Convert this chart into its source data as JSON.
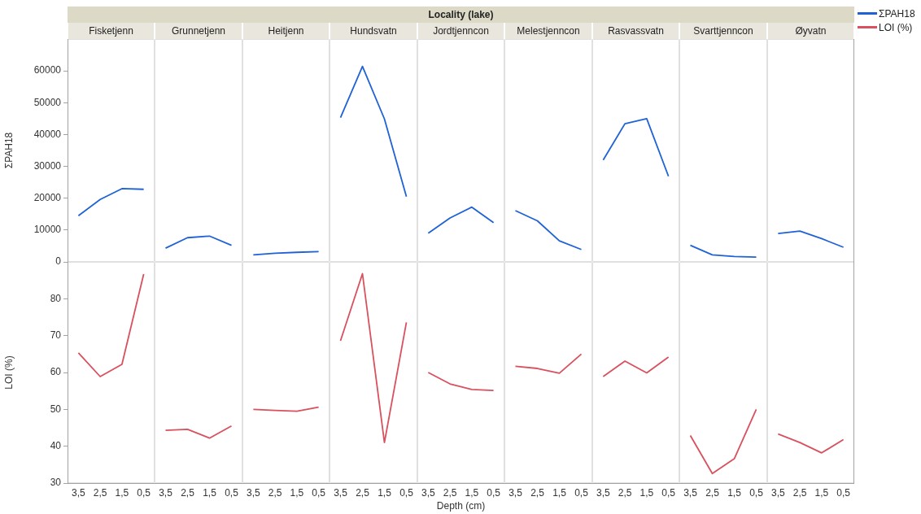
{
  "chart_data": [
    {
      "type": "line",
      "title": "Fisketjenn",
      "ylabel": "ΣPAH18",
      "categories": [
        "3,5",
        "2,5",
        "1,5",
        "0,5"
      ],
      "series": [
        {
          "color": "#1f62d6",
          "values": [
            14500,
            19600,
            23000,
            22800
          ]
        }
      ],
      "ylim": [
        0,
        70000
      ],
      "yticks": [
        0,
        10000,
        20000,
        30000,
        40000,
        50000,
        60000
      ],
      "tick_labels": "y"
    },
    {
      "type": "line",
      "title": "Grunnetjenn",
      "categories": [
        "3,5",
        "2,5",
        "1,5",
        "0,5"
      ],
      "series": [
        {
          "color": "#1f62d6",
          "values": [
            4300,
            7600,
            8100,
            5200
          ]
        }
      ],
      "ylim": [
        0,
        70000
      ],
      "tick_labels": false
    },
    {
      "type": "line",
      "title": "Heitjenn",
      "categories": [
        "3,5",
        "2,5",
        "1,5",
        "0,5"
      ],
      "series": [
        {
          "color": "#1f62d6",
          "values": [
            2200,
            2700,
            3000,
            3200
          ]
        }
      ],
      "ylim": [
        0,
        70000
      ],
      "tick_labels": false
    },
    {
      "type": "line",
      "title": "Hundsvatn",
      "categories": [
        "3,5",
        "2,5",
        "1,5",
        "0,5"
      ],
      "series": [
        {
          "color": "#1f62d6",
          "values": [
            45300,
            61400,
            44900,
            20500
          ]
        }
      ],
      "ylim": [
        0,
        70000
      ],
      "tick_labels": false
    },
    {
      "type": "line",
      "title": "Jordtjenncon",
      "annotations": [
        "Locality (lake)"
      ],
      "categories": [
        "3,5",
        "2,5",
        "1,5",
        "0,5"
      ],
      "series": [
        {
          "color": "#1f62d6",
          "values": [
            9000,
            13800,
            17200,
            12300
          ]
        }
      ],
      "ylim": [
        0,
        70000
      ],
      "tick_labels": false
    },
    {
      "type": "line",
      "title": "Melestjenncon",
      "categories": [
        "3,5",
        "2,5",
        "1,5",
        "0,5"
      ],
      "series": [
        {
          "color": "#1f62d6",
          "values": [
            16100,
            12900,
            6600,
            3900
          ]
        }
      ],
      "ylim": [
        0,
        70000
      ],
      "tick_labels": false
    },
    {
      "type": "line",
      "title": "Rasvassvatn",
      "categories": [
        "3,5",
        "2,5",
        "1,5",
        "0,5"
      ],
      "series": [
        {
          "color": "#1f62d6",
          "values": [
            32000,
            43400,
            45000,
            26900
          ]
        }
      ],
      "ylim": [
        0,
        70000
      ],
      "tick_labels": false
    },
    {
      "type": "line",
      "title": "Svarttjenncon",
      "categories": [
        "3,5",
        "2,5",
        "1,5",
        "0,5"
      ],
      "series": [
        {
          "color": "#1f62d6",
          "values": [
            5200,
            2200,
            1700,
            1500
          ]
        }
      ],
      "ylim": [
        0,
        70000
      ],
      "tick_labels": false
    },
    {
      "type": "line",
      "title": "Øyvatn",
      "categories": [
        "3,5",
        "2,5",
        "1,5",
        "0,5"
      ],
      "series": [
        {
          "name": "ΣPAH18",
          "color": "#1f62d6",
          "values": [
            8900,
            9700,
            7300,
            4600
          ]
        }
      ],
      "ylim": [
        0,
        70000
      ],
      "tick_labels": false,
      "legend": "top right"
    },
    {
      "type": "line",
      "ylabel": "LOI (%)",
      "categories": [
        "3,5",
        "2,5",
        "1,5",
        "0,5"
      ],
      "series": [
        {
          "color": "#d9505e",
          "values": [
            65.3,
            58.9,
            62.2,
            86.7
          ]
        }
      ],
      "ylim": [
        30,
        90
      ],
      "yticks": [
        30,
        40,
        50,
        60,
        70,
        80
      ]
    },
    {
      "type": "line",
      "categories": [
        "3,5",
        "2,5",
        "1,5",
        "0,5"
      ],
      "series": [
        {
          "color": "#d9505e",
          "values": [
            44.3,
            44.6,
            42.2,
            45.5
          ]
        }
      ],
      "ylim": [
        30,
        90
      ],
      "tick_labels": "x"
    },
    {
      "type": "line",
      "categories": [
        "3,5",
        "2,5",
        "1,5",
        "0,5"
      ],
      "series": [
        {
          "color": "#d9505e",
          "values": [
            50,
            49.7,
            49.5,
            50.6
          ]
        }
      ],
      "ylim": [
        30,
        90
      ],
      "tick_labels": "x"
    },
    {
      "type": "line",
      "categories": [
        "3,5",
        "2,5",
        "1,5",
        "0,5"
      ],
      "series": [
        {
          "color": "#d9505e",
          "values": [
            68.6,
            86.8,
            41,
            73.6
          ]
        }
      ],
      "ylim": [
        30,
        90
      ],
      "tick_labels": "x"
    },
    {
      "type": "line",
      "xlabel": "Depth (cm)",
      "categories": [
        "3,5",
        "2,5",
        "1,5",
        "0,5"
      ],
      "series": [
        {
          "color": "#d9505e",
          "values": [
            60,
            56.9,
            55.4,
            55.1
          ]
        }
      ],
      "ylim": [
        30,
        90
      ],
      "tick_labels": "x"
    },
    {
      "type": "line",
      "categories": [
        "3,5",
        "2,5",
        "1,5",
        "0,5"
      ],
      "series": [
        {
          "color": "#d9505e",
          "values": [
            61.7,
            61.1,
            59.8,
            65
          ]
        }
      ],
      "ylim": [
        30,
        90
      ],
      "tick_labels": "x"
    },
    {
      "type": "line",
      "categories": [
        "3,5",
        "2,5",
        "1,5",
        "0,5"
      ],
      "series": [
        {
          "color": "#d9505e",
          "values": [
            58.9,
            63.1,
            59.9,
            64.2
          ]
        }
      ],
      "ylim": [
        30,
        90
      ],
      "tick_labels": "x"
    },
    {
      "type": "line",
      "categories": [
        "3,5",
        "2,5",
        "1,5",
        "0,5"
      ],
      "series": [
        {
          "color": "#d9505e",
          "values": [
            42.9,
            32.6,
            36.6,
            50
          ]
        }
      ],
      "ylim": [
        30,
        90
      ],
      "tick_labels": "x"
    },
    {
      "type": "line",
      "categories": [
        "3,5",
        "2,5",
        "1,5",
        "0,5"
      ],
      "series": [
        {
          "name": "LOI (%)",
          "color": "#d9505e",
          "values": [
            43.3,
            41,
            38.2,
            41.8
          ]
        }
      ],
      "ylim": [
        30,
        90
      ],
      "tick_labels": "x",
      "legend": "top right"
    }
  ]
}
